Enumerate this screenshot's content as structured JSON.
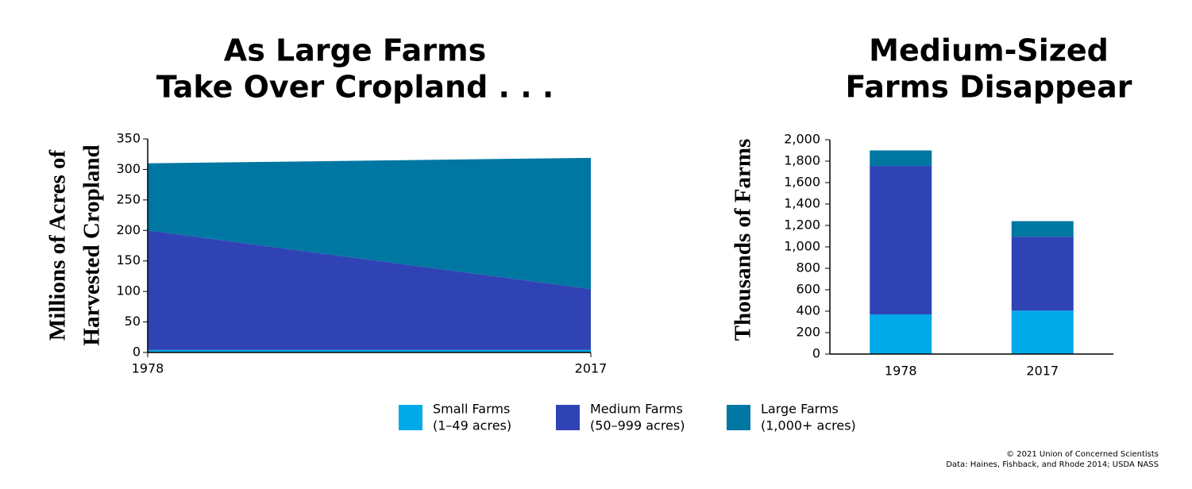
{
  "charts": [
    {
      "chart_data": {
        "type": "area",
        "title": [
          "As Large Farms",
          "Take Over Cropland . . ."
        ],
        "y_label": [
          "Millions of Acres of",
          "Harvested Cropland"
        ],
        "x": [
          1978,
          2017
        ],
        "xlim": [
          1978,
          2017
        ],
        "xticks": [
          1978,
          2017
        ],
        "ylim": [
          0,
          350
        ],
        "yticks": [
          0,
          50,
          100,
          150,
          200,
          250,
          300,
          350
        ],
        "series": [
          {
            "name": "Small Farms",
            "size_range": "(1–49 acres)",
            "color": "#00a9e8",
            "values": [
              4,
              4
            ]
          },
          {
            "name": "Medium Farms",
            "size_range": "(50–999 acres)",
            "color": "#3043b5",
            "values": [
              196,
              100
            ]
          },
          {
            "name": "Large Farms",
            "size_range": "(1,000+ acres)",
            "color": "#0077a2",
            "values": [
              110,
              215
            ]
          }
        ]
      }
    },
    {
      "chart_data": {
        "type": "bar",
        "title": [
          "Medium-Sized",
          "Farms Disappear"
        ],
        "y_label": "Thousands of Farms",
        "categories": [
          "1978",
          "2017"
        ],
        "ylim": [
          0,
          2000
        ],
        "yticks": [
          0,
          200,
          400,
          600,
          800,
          {
            "value": 1000,
            "label": "1,000"
          },
          {
            "value": 1200,
            "label": "1,200"
          },
          {
            "value": 1400,
            "label": "1,400"
          },
          {
            "value": 1600,
            "label": "1,600"
          },
          {
            "value": 1800,
            "label": "1,800"
          },
          {
            "value": 2000,
            "label": "2,000"
          }
        ],
        "series": [
          {
            "color": "#00a9e8",
            "values": [
              370,
              405
            ]
          },
          {
            "color": "#3043b5",
            "values": [
              1385,
              690
            ]
          },
          {
            "color": "#0077a2",
            "values": [
              145,
              145
            ]
          }
        ]
      }
    }
  ],
  "credits": [
    "© 2021 Union of Concerned Scientists",
    "Data: Haines, Fishback, and Rhode 2014; USDA NASS"
  ]
}
